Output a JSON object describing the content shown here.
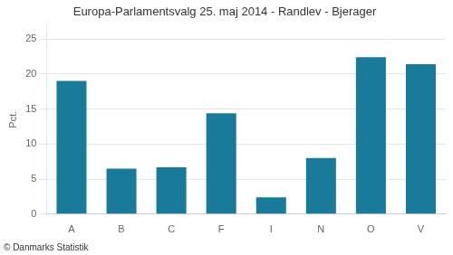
{
  "chart_data": {
    "type": "bar",
    "title": "Europa-Parlamentsvalg 25. maj 2014 - Randlev - Bjerager",
    "categories": [
      "A",
      "B",
      "C",
      "F",
      "I",
      "N",
      "O",
      "V"
    ],
    "values": [
      19.0,
      6.5,
      6.7,
      14.4,
      2.4,
      8.0,
      22.4,
      21.4
    ],
    "color": "#1a7a9a",
    "ylabel": "Pct.",
    "ylim": [
      0,
      27
    ],
    "yticks": [
      0,
      5,
      10,
      15,
      20,
      25
    ],
    "grid": true,
    "annotations": [
      "© Danmarks Statistik"
    ]
  }
}
